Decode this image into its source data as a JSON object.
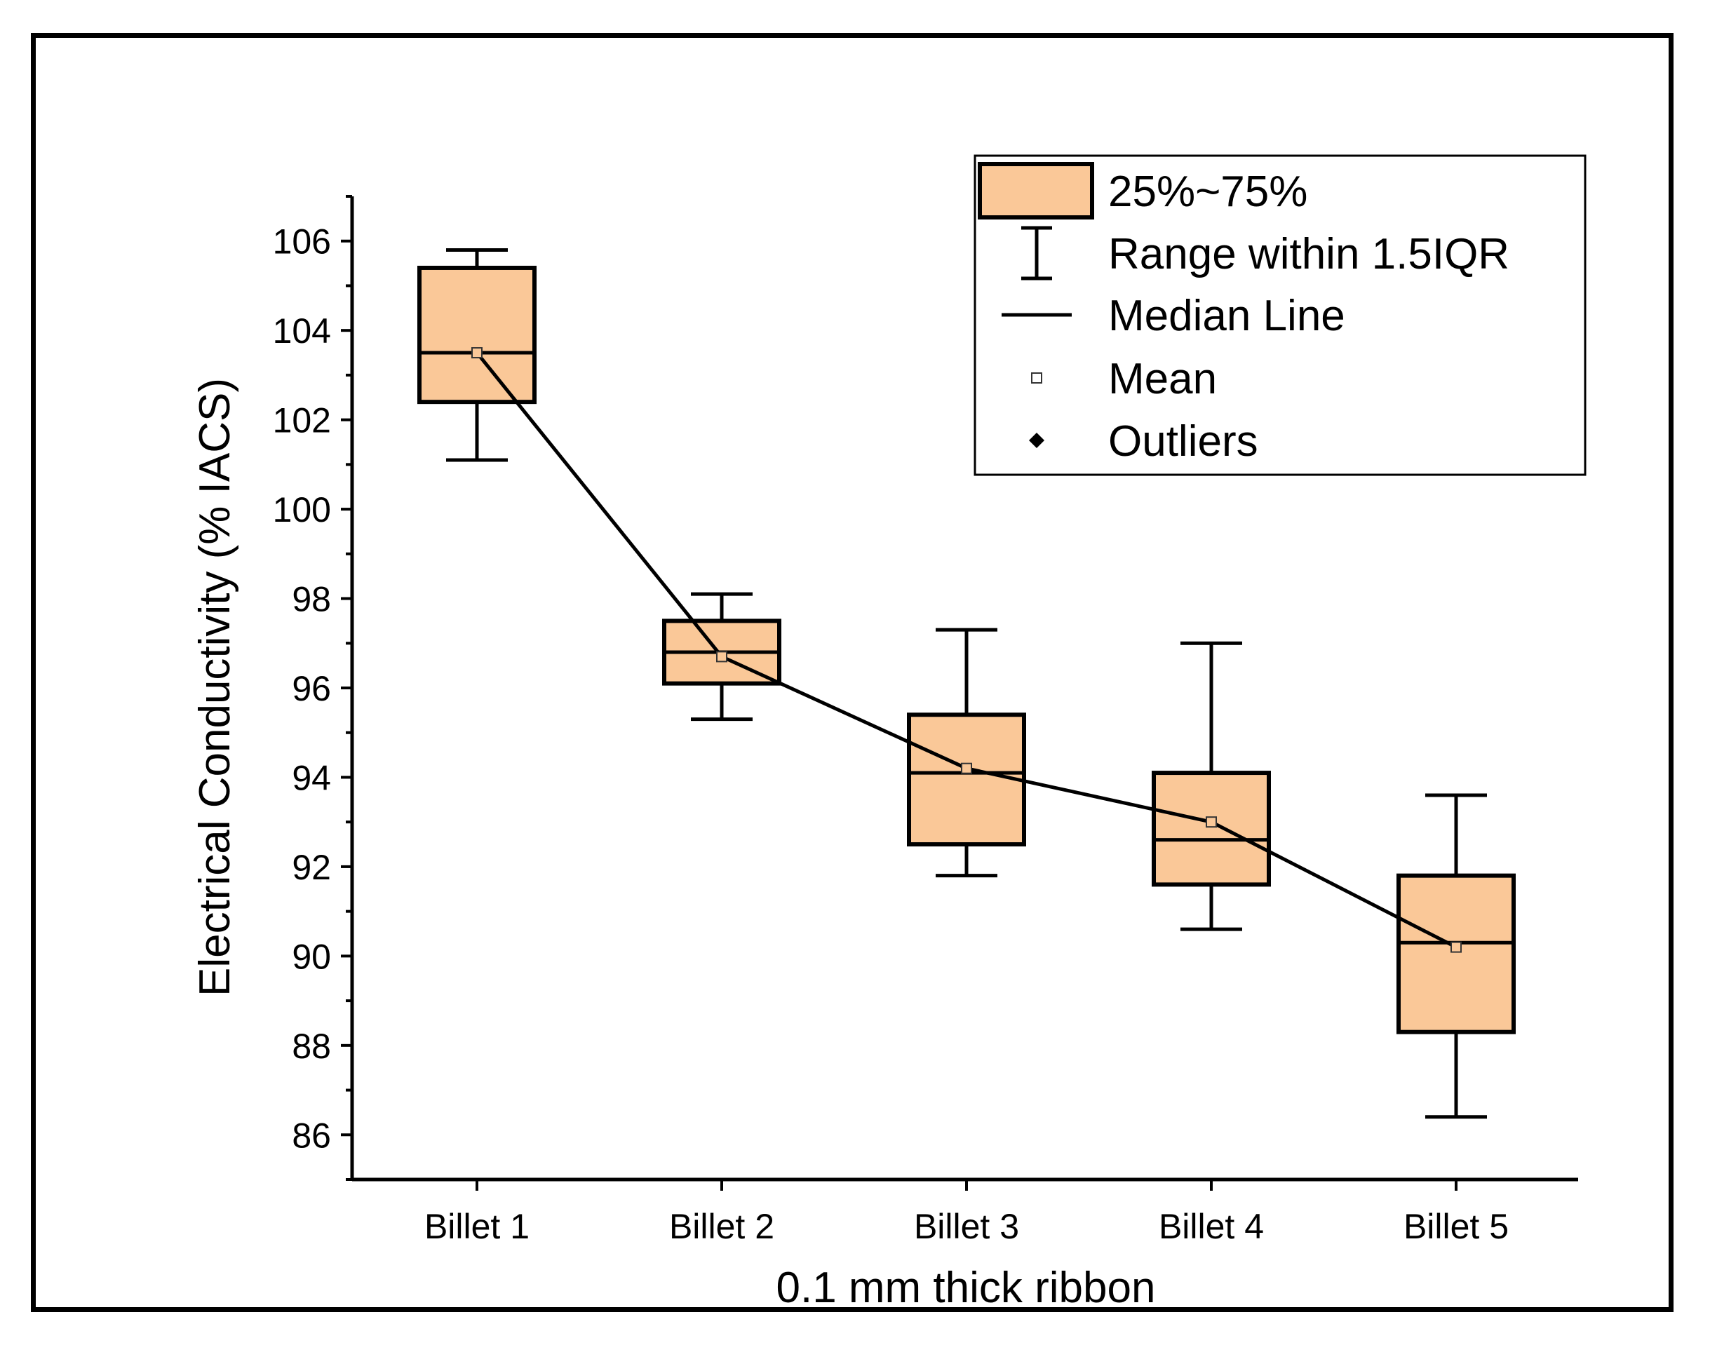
{
  "chart_data": {
    "type": "box",
    "title": "",
    "xlabel": "0.1 mm thick ribbon",
    "ylabel": "Electrical Conductivity (% IACS)",
    "ylim": [
      85,
      107
    ],
    "yticks": [
      86,
      88,
      90,
      92,
      94,
      96,
      98,
      100,
      102,
      104,
      106
    ],
    "ytick_labels": [
      "86",
      "88",
      "90",
      "92",
      "94",
      "96",
      "98",
      "100",
      "102",
      "104",
      "106"
    ],
    "categories": [
      "Billet 1",
      "Billet 2",
      "Billet 3",
      "Billet 4",
      "Billet 5"
    ],
    "boxes": [
      {
        "category": "Billet 1",
        "whisker_low": 101.1,
        "q1": 102.4,
        "median": 103.5,
        "q3": 105.4,
        "whisker_high": 105.8,
        "mean": 103.5
      },
      {
        "category": "Billet 2",
        "whisker_low": 95.3,
        "q1": 96.1,
        "median": 96.8,
        "q3": 97.5,
        "whisker_high": 98.1,
        "mean": 96.7
      },
      {
        "category": "Billet 3",
        "whisker_low": 91.8,
        "q1": 92.5,
        "median": 94.1,
        "q3": 95.4,
        "whisker_high": 97.3,
        "mean": 94.2
      },
      {
        "category": "Billet 4",
        "whisker_low": 90.6,
        "q1": 91.6,
        "median": 92.6,
        "q3": 94.1,
        "whisker_high": 97.0,
        "mean": 93.0
      },
      {
        "category": "Billet 5",
        "whisker_low": 86.4,
        "q1": 88.3,
        "median": 90.3,
        "q3": 91.8,
        "whisker_high": 93.6,
        "mean": 90.2
      }
    ],
    "mean_line": true,
    "legend": {
      "position": "top-right",
      "items": [
        {
          "label": "25%~75%",
          "symbol": "box"
        },
        {
          "label": "Range within 1.5IQR",
          "symbol": "whisker"
        },
        {
          "label": "Median Line",
          "symbol": "line"
        },
        {
          "label": "Mean",
          "symbol": "square-marker"
        },
        {
          "label": "Outliers",
          "symbol": "diamond"
        }
      ]
    },
    "colors": {
      "box_fill": "#fac898",
      "stroke": "#000000",
      "mean_fill": "#fac898"
    }
  }
}
